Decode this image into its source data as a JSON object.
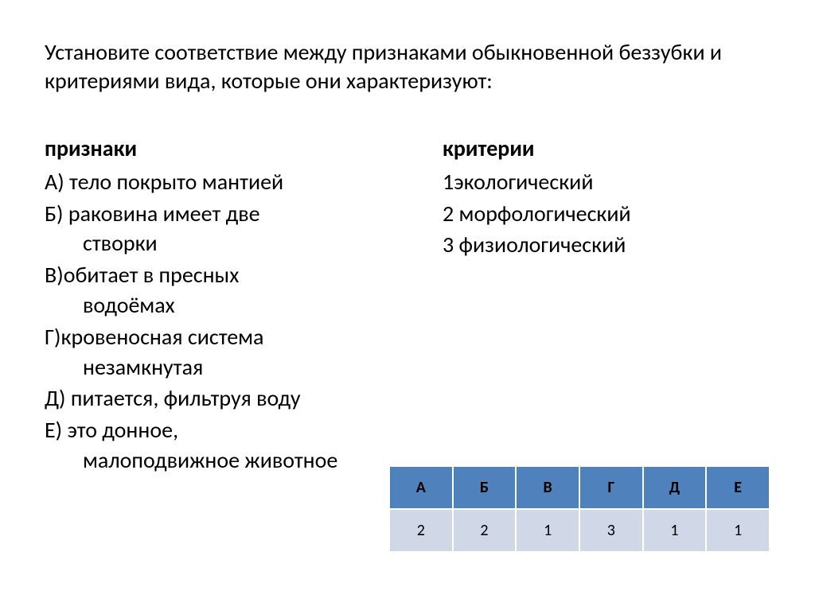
{
  "title": "Установите соответствие между признаками обыкновенной беззубки и критериями вида, которые они характеризуют:",
  "left": {
    "heading": "признаки",
    "items": {
      "a": "А) тело покрыто мантией",
      "b_line1": "Б) раковина имеет две",
      "b_line2": "створки",
      "v_line1": "В)обитает в пресных",
      "v_line2": "водоёмах",
      "g_line1": "Г)кровеносная система",
      "g_line2": "незамкнутая",
      "d": "Д) питается, фильтруя воду",
      "e_line1": "Е) это донное,",
      "e_line2": "малоподвижное животное"
    }
  },
  "right": {
    "heading": "критерии",
    "items": {
      "r1": "1экологический",
      "r2": "2 морфологический",
      "r3": "3 физиологический"
    }
  },
  "table": {
    "headers": [
      "А",
      "Б",
      "В",
      "Г",
      "Д",
      "Е"
    ],
    "answers": [
      "2",
      "2",
      "1",
      "3",
      "1",
      "1"
    ],
    "header_bg": "#4f81bd",
    "header_text": "#000000",
    "answer_bg": "#d0d8e8",
    "answer_text": "#000000",
    "border_color": "#ffffff"
  }
}
